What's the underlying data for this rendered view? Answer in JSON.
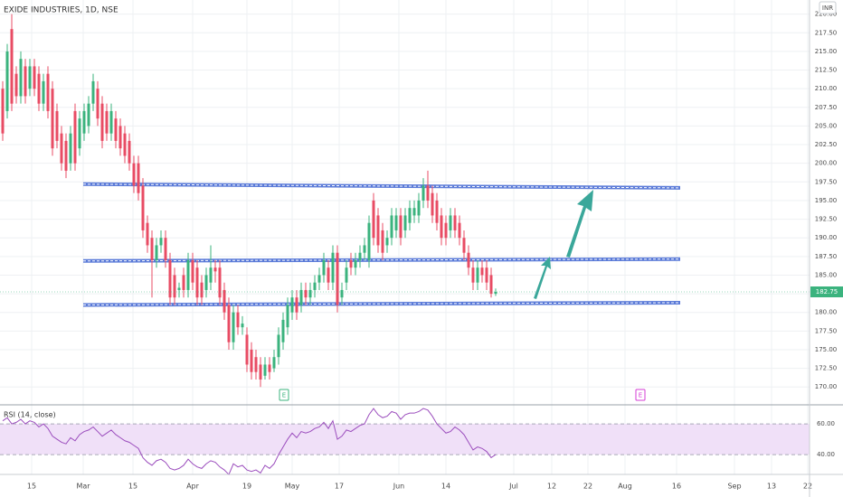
{
  "chart_data": {
    "type": "candlestick",
    "title": "EXIDE INDUSTRIES, 1D, NSE",
    "currency": "INR",
    "up_color": "#3bb37e",
    "down_color": "#e84c64",
    "grid": true,
    "ylim": [
      167.6,
      221.9
    ],
    "yticks": [
      {
        "value": 170,
        "label": "170.00"
      },
      {
        "value": 172.5,
        "label": "172.50"
      },
      {
        "value": 175,
        "label": "175.00"
      },
      {
        "value": 177.5,
        "label": "177.50"
      },
      {
        "value": 180,
        "label": "180.00"
      },
      {
        "value": 182.5,
        "label": "182.50"
      },
      {
        "value": 185,
        "label": "185.00"
      },
      {
        "value": 187.5,
        "label": "187.50"
      },
      {
        "value": 190,
        "label": "190.00"
      },
      {
        "value": 192.5,
        "label": "192.50"
      },
      {
        "value": 195,
        "label": "195.00"
      },
      {
        "value": 197.5,
        "label": "197.50"
      },
      {
        "value": 200,
        "label": "200.00"
      },
      {
        "value": 202.5,
        "label": "202.50"
      },
      {
        "value": 205,
        "label": "205.00"
      },
      {
        "value": 207.5,
        "label": "207.50"
      },
      {
        "value": 210,
        "label": "210.00"
      },
      {
        "value": 212.5,
        "label": "212.50"
      },
      {
        "value": 215,
        "label": "215.00"
      },
      {
        "value": 217.5,
        "label": "217.50"
      },
      {
        "value": 220,
        "label": "220.00"
      }
    ],
    "time_labels": [
      "15",
      "Mar",
      "15",
      "Apr",
      "19",
      "May",
      "17",
      "Jun",
      "14",
      "Jul",
      "12",
      "22",
      "Aug",
      "16",
      "Sep",
      "13",
      "22"
    ],
    "last_price": 182.75,
    "events": [
      "E",
      "E"
    ],
    "level_color": "#5b7bd8",
    "levels": [
      [
        197.2,
        196.7
      ],
      [
        186.9,
        187.15
      ],
      [
        181.0,
        181.3
      ]
    ],
    "candles": [
      [
        210,
        211,
        203,
        204
      ],
      [
        207,
        216,
        206,
        215
      ],
      [
        218,
        220,
        207,
        208
      ],
      [
        212,
        213,
        208,
        209
      ],
      [
        209,
        215,
        208,
        214
      ],
      [
        213,
        214,
        208,
        209
      ],
      [
        210,
        214,
        209,
        213
      ],
      [
        213,
        214,
        209,
        210
      ],
      [
        212,
        213,
        207,
        208
      ],
      [
        208,
        212,
        207,
        211
      ],
      [
        212,
        213,
        206,
        207
      ],
      [
        210,
        211,
        201,
        202
      ],
      [
        207,
        208,
        202,
        203
      ],
      [
        204,
        205,
        199,
        200
      ],
      [
        203,
        204,
        198,
        199
      ],
      [
        200,
        205,
        199,
        204
      ],
      [
        207,
        208,
        199,
        200
      ],
      [
        202,
        207,
        201,
        206
      ],
      [
        204,
        208,
        203,
        207
      ],
      [
        205,
        209,
        204,
        208
      ],
      [
        208,
        212,
        207,
        211
      ],
      [
        210,
        211,
        205,
        206
      ],
      [
        208,
        209,
        202,
        203
      ],
      [
        207,
        208,
        203,
        204
      ],
      [
        204,
        208,
        203,
        207
      ],
      [
        206,
        207,
        202,
        203
      ],
      [
        205,
        206,
        201,
        202
      ],
      [
        204,
        205,
        200,
        201
      ],
      [
        203,
        204,
        199,
        200
      ],
      [
        200,
        201,
        196,
        197
      ],
      [
        200,
        201,
        195,
        196
      ],
      [
        197,
        198,
        190,
        191
      ],
      [
        192,
        193,
        188,
        189
      ],
      [
        190,
        191,
        182,
        187
      ],
      [
        187,
        190,
        186,
        189
      ],
      [
        189,
        191,
        188,
        190
      ],
      [
        190,
        191,
        186,
        187
      ],
      [
        187,
        188,
        181,
        182
      ],
      [
        185,
        186,
        181,
        182
      ],
      [
        183,
        184,
        182,
        183.3
      ],
      [
        185,
        186,
        182,
        183
      ],
      [
        183,
        188,
        182,
        187
      ],
      [
        187,
        188,
        183,
        184
      ],
      [
        186,
        187,
        181,
        182
      ],
      [
        184,
        185,
        181,
        182
      ],
      [
        183,
        186,
        182,
        185
      ],
      [
        184,
        189,
        183,
        186
      ],
      [
        186,
        187,
        184,
        185.5
      ],
      [
        186,
        187,
        181,
        182
      ],
      [
        183,
        184,
        179,
        180
      ],
      [
        181,
        182,
        175,
        176
      ],
      [
        176,
        181,
        175,
        180
      ],
      [
        180,
        181,
        177,
        178
      ],
      [
        178,
        179.5,
        177,
        178.5
      ],
      [
        177,
        178,
        172,
        173
      ],
      [
        175,
        176,
        171,
        172
      ],
      [
        174,
        175,
        171,
        172
      ],
      [
        173,
        174,
        170,
        171
      ],
      [
        171.5,
        174,
        171,
        173
      ],
      [
        173,
        174,
        171,
        172
      ],
      [
        172.5,
        175,
        172,
        174
      ],
      [
        174,
        178,
        173,
        177
      ],
      [
        176,
        180,
        175,
        179
      ],
      [
        178,
        182,
        177,
        181
      ],
      [
        180,
        183,
        179,
        182
      ],
      [
        182,
        183,
        179,
        180
      ],
      [
        181,
        184,
        180,
        183
      ],
      [
        183,
        184,
        181,
        182
      ],
      [
        182,
        184,
        181,
        183
      ],
      [
        183,
        185,
        182,
        184
      ],
      [
        184,
        186,
        183,
        185
      ],
      [
        185,
        188,
        184,
        187
      ],
      [
        186,
        187,
        183,
        184
      ],
      [
        184,
        189,
        183,
        188
      ],
      [
        188,
        189,
        180,
        181
      ],
      [
        182,
        184,
        181,
        183
      ],
      [
        184,
        187,
        183,
        186
      ],
      [
        187,
        188,
        185,
        186
      ],
      [
        186,
        188,
        185,
        187
      ],
      [
        187,
        189,
        186,
        188
      ],
      [
        188,
        190,
        187,
        189
      ],
      [
        187,
        193,
        186,
        192
      ],
      [
        195,
        196,
        189,
        190
      ],
      [
        193,
        194,
        188,
        189
      ],
      [
        191,
        192,
        187,
        188
      ],
      [
        189,
        191,
        188,
        190
      ],
      [
        190,
        194,
        189,
        193
      ],
      [
        191,
        194,
        190,
        193
      ],
      [
        193,
        194,
        189,
        190
      ],
      [
        191,
        194,
        190,
        193
      ],
      [
        192,
        195,
        191,
        194
      ],
      [
        193,
        195,
        192,
        194
      ],
      [
        193,
        196,
        192,
        195
      ],
      [
        195,
        198,
        194,
        197
      ],
      [
        197,
        199,
        194,
        195
      ],
      [
        196,
        197,
        192,
        193
      ],
      [
        195,
        196,
        191,
        192
      ],
      [
        193,
        194,
        189,
        190
      ],
      [
        192,
        193,
        189,
        190
      ],
      [
        191,
        194,
        190,
        193
      ],
      [
        193,
        194,
        190,
        191
      ],
      [
        192,
        193,
        189,
        190
      ],
      [
        190,
        191,
        187,
        188
      ],
      [
        188,
        189,
        185,
        186
      ],
      [
        186,
        187,
        183,
        184
      ],
      [
        184,
        187,
        183,
        186
      ],
      [
        186,
        187,
        184,
        185
      ],
      [
        186,
        187,
        183,
        184
      ],
      [
        185,
        186,
        182,
        182.5
      ],
      [
        182.5,
        183.2,
        182.2,
        182.75
      ]
    ],
    "rsi": {
      "type": "line",
      "label": "RSI (14, close)",
      "color": "#9b4dbd",
      "band_color": "#f0e0f8",
      "ylim": [
        27.1,
        72.4
      ],
      "yticks": [
        {
          "value": 40,
          "label": "40.00"
        },
        {
          "value": 60,
          "label": "60.00"
        }
      ],
      "values": [
        62,
        64,
        60,
        61,
        63,
        60,
        62,
        61,
        58,
        60,
        57,
        52,
        50,
        48,
        47,
        51,
        49,
        53,
        55,
        56,
        58,
        55,
        52,
        54,
        56,
        53,
        51,
        49,
        48,
        46,
        44,
        38,
        35,
        33,
        36,
        37,
        35,
        31,
        30,
        31,
        33,
        37,
        34,
        32,
        31,
        34,
        36,
        35,
        32,
        30,
        27,
        34,
        32,
        33,
        30,
        29,
        30,
        28,
        33,
        31,
        34,
        40,
        45,
        50,
        54,
        51,
        55,
        54,
        55,
        57,
        58,
        61,
        57,
        62,
        50,
        52,
        56,
        55,
        57,
        59,
        60,
        66,
        70,
        66,
        64,
        65,
        68,
        67,
        63,
        66,
        67,
        67,
        68,
        70,
        69,
        65,
        60,
        57,
        54,
        55,
        58,
        56,
        53,
        48,
        43,
        45,
        44,
        42,
        38,
        40
      ]
    }
  }
}
